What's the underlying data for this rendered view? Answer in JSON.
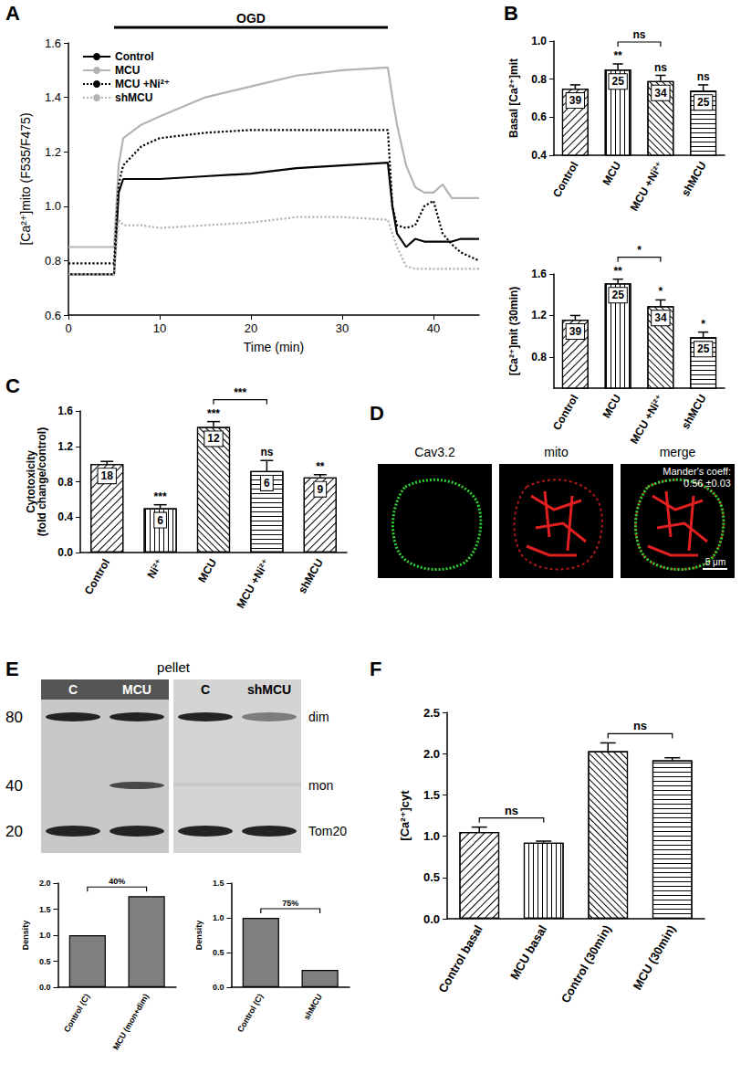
{
  "chart_data": [
    {
      "panel": "A",
      "type": "line",
      "x_label": "Time (min)",
      "y_label": "[Ca²⁺]mito (F535/F475)",
      "x": [
        0,
        5,
        5.5,
        6,
        8,
        10,
        15,
        20,
        25,
        30,
        35,
        35.5,
        36,
        37,
        38,
        39,
        40,
        41,
        42,
        43,
        45
      ],
      "series": [
        {
          "name": "Control",
          "color": "#000000",
          "line_style": "solid",
          "values": [
            0.75,
            0.75,
            1.05,
            1.1,
            1.1,
            1.1,
            1.11,
            1.12,
            1.14,
            1.15,
            1.16,
            1.0,
            0.9,
            0.85,
            0.88,
            0.87,
            0.87,
            0.87,
            0.87,
            0.88,
            0.88
          ]
        },
        {
          "name": "MCU",
          "color": "#b3b3b3",
          "line_style": "solid",
          "values": [
            0.85,
            0.85,
            1.15,
            1.25,
            1.3,
            1.33,
            1.4,
            1.44,
            1.48,
            1.5,
            1.51,
            1.4,
            1.3,
            1.15,
            1.07,
            1.05,
            1.05,
            1.08,
            1.03,
            1.03,
            1.03
          ]
        },
        {
          "name": "MCU +Ni²⁺",
          "color": "#000000",
          "line_style": "dotted",
          "values": [
            0.79,
            0.79,
            1.08,
            1.15,
            1.22,
            1.25,
            1.27,
            1.28,
            1.28,
            1.28,
            1.28,
            1.0,
            0.93,
            0.92,
            0.93,
            1.0,
            1.02,
            0.9,
            0.86,
            0.83,
            0.8
          ]
        },
        {
          "name": "shMCU",
          "color": "#b3b3b3",
          "line_style": "dotted",
          "values": [
            0.75,
            0.75,
            0.95,
            0.93,
            0.93,
            0.92,
            0.93,
            0.94,
            0.96,
            0.96,
            0.95,
            0.9,
            0.85,
            0.78,
            0.77,
            0.77,
            0.77,
            0.77,
            0.77,
            0.77,
            0.77
          ]
        }
      ],
      "xlim": [
        0,
        45
      ],
      "xticks": [
        0,
        10,
        20,
        30,
        40
      ],
      "ylim": [
        0.6,
        1.6
      ],
      "yticks": [
        0.6,
        0.8,
        {
          "value": 1,
          "label": "1.0"
        },
        1.2,
        1.4,
        1.6
      ],
      "legend": "upper left",
      "grid": false,
      "annotations": [
        {
          "text": "OGD",
          "x_start": 5,
          "x_end": 35
        }
      ]
    },
    {
      "panel": "B",
      "type": "bar",
      "y_label": "Basal [Ca²⁺]mit",
      "categories": [
        "Control",
        "MCU",
        "MCU +Ni²⁺",
        "shMCU"
      ],
      "values": [
        0.75,
        0.85,
        0.79,
        0.74
      ],
      "errors": [
        0.02,
        0.03,
        0.03,
        0.03
      ],
      "n": [
        39,
        25,
        34,
        25
      ],
      "significance": [
        null,
        "**",
        "ns",
        "ns"
      ],
      "comparisons": [
        {
          "from": "MCU",
          "to": "MCU +Ni²⁺",
          "label": "ns"
        }
      ],
      "color": "#ffffff",
      "ylim": [
        0.4,
        1.0
      ],
      "yticks": [
        0.4,
        0.6,
        0.8,
        {
          "value": 1,
          "label": "1.0"
        }
      ],
      "grid": false
    },
    {
      "type": "bar",
      "y_label": "[Ca²⁺]mit (30min)",
      "categories": [
        "Control",
        "MCU",
        "MCU +Ni²⁺",
        "shMCU"
      ],
      "values": [
        1.16,
        1.51,
        1.29,
        0.99
      ],
      "errors": [
        0.04,
        0.04,
        0.06,
        0.05
      ],
      "n": [
        39,
        25,
        34,
        25
      ],
      "significance": [
        null,
        "**",
        "*",
        "*"
      ],
      "comparisons": [
        {
          "from": "MCU",
          "to": "MCU +Ni²⁺",
          "label": "*"
        }
      ],
      "color": "#ffffff",
      "ylim": [
        0.5,
        1.6
      ],
      "yticks": [
        0.8,
        1.2,
        1.6
      ],
      "grid": false
    },
    {
      "panel": "C",
      "type": "bar",
      "y_label": "Cytotoxicity\n(fold change/control)",
      "categories": [
        "Control",
        "Ni²⁺",
        "MCU",
        "MCU +Ni²⁺",
        "shMCU"
      ],
      "values": [
        1.0,
        0.5,
        1.42,
        0.92,
        0.85
      ],
      "errors": [
        0.03,
        0.04,
        0.06,
        0.12,
        0.03
      ],
      "n": [
        18,
        6,
        12,
        6,
        9
      ],
      "significance": [
        null,
        "***",
        "***",
        "ns",
        "**"
      ],
      "comparisons": [
        {
          "from": "MCU",
          "to": "MCU +Ni²⁺",
          "label": "***"
        }
      ],
      "color": "#ffffff",
      "ylim": [
        0,
        1.6
      ],
      "yticks": [
        {
          "value": 0,
          "label": "0.0"
        },
        0.4,
        0.8,
        1.2,
        1.6
      ],
      "grid": false
    },
    {
      "panel": "F",
      "type": "bar",
      "y_label": "[Ca²⁺]cyt",
      "categories": [
        "Control basal",
        "MCU basal",
        "Control (30min)",
        "MCU (30min)"
      ],
      "values": [
        1.05,
        0.92,
        2.03,
        1.92
      ],
      "errors": [
        0.06,
        0.02,
        0.1,
        0.03
      ],
      "comparisons": [
        {
          "from": "Control basal",
          "to": "MCU basal",
          "label": "ns"
        },
        {
          "from": "Control (30min)",
          "to": "MCU (30min)",
          "label": "ns"
        }
      ],
      "color": "#ffffff",
      "ylim": [
        0,
        2.5
      ],
      "yticks": [
        {
          "value": 0,
          "label": "0.0"
        },
        0.5,
        {
          "value": 1,
          "label": "1.0"
        },
        1.5,
        {
          "value": 2,
          "label": "2.0"
        },
        2.5
      ],
      "grid": false
    },
    {
      "type": "bar",
      "y_label": "Density",
      "categories": [
        "Control (C)",
        "MCU (mon+dim)"
      ],
      "values": [
        1.0,
        1.75
      ],
      "comparisons": [
        {
          "from": "Control (C)",
          "to": "MCU (mon+dim)",
          "label": "40%"
        }
      ],
      "color": "#7f7f7f",
      "ylim": [
        0,
        2
      ],
      "yticks": [
        {
          "value": 0,
          "label": "0.0"
        },
        0.5,
        {
          "value": 1,
          "label": "1.0"
        },
        1.5,
        {
          "value": 2,
          "label": "2.0"
        }
      ],
      "grid": false
    },
    {
      "type": "bar",
      "y_label": "Density",
      "categories": [
        "Control (C)",
        "shMCU"
      ],
      "values": [
        1.0,
        0.25
      ],
      "comparisons": [
        {
          "from": "Control (C)",
          "to": "shMCU",
          "label": "75%"
        }
      ],
      "color": "#7f7f7f",
      "ylim": [
        0,
        1.5
      ],
      "yticks": [
        {
          "value": 0,
          "label": "0.0"
        },
        0.5,
        {
          "value": 1,
          "label": "1.0"
        },
        1.5
      ],
      "grid": false
    }
  ],
  "figure_panels": {
    "D": {
      "panel": "D",
      "images": [
        "Cav3.2",
        "mito",
        "merge"
      ],
      "annotation": "Mander's coeff:\n0.56 ±0.03",
      "scale_bar": "5 μm"
    },
    "E": {
      "panel": "E",
      "title": "pellet",
      "lanes": [
        "C",
        "MCU",
        "C",
        "shMCU"
      ],
      "markers": [
        80,
        40,
        20
      ],
      "bands": [
        "dim",
        "mon",
        "Tom20"
      ]
    }
  }
}
